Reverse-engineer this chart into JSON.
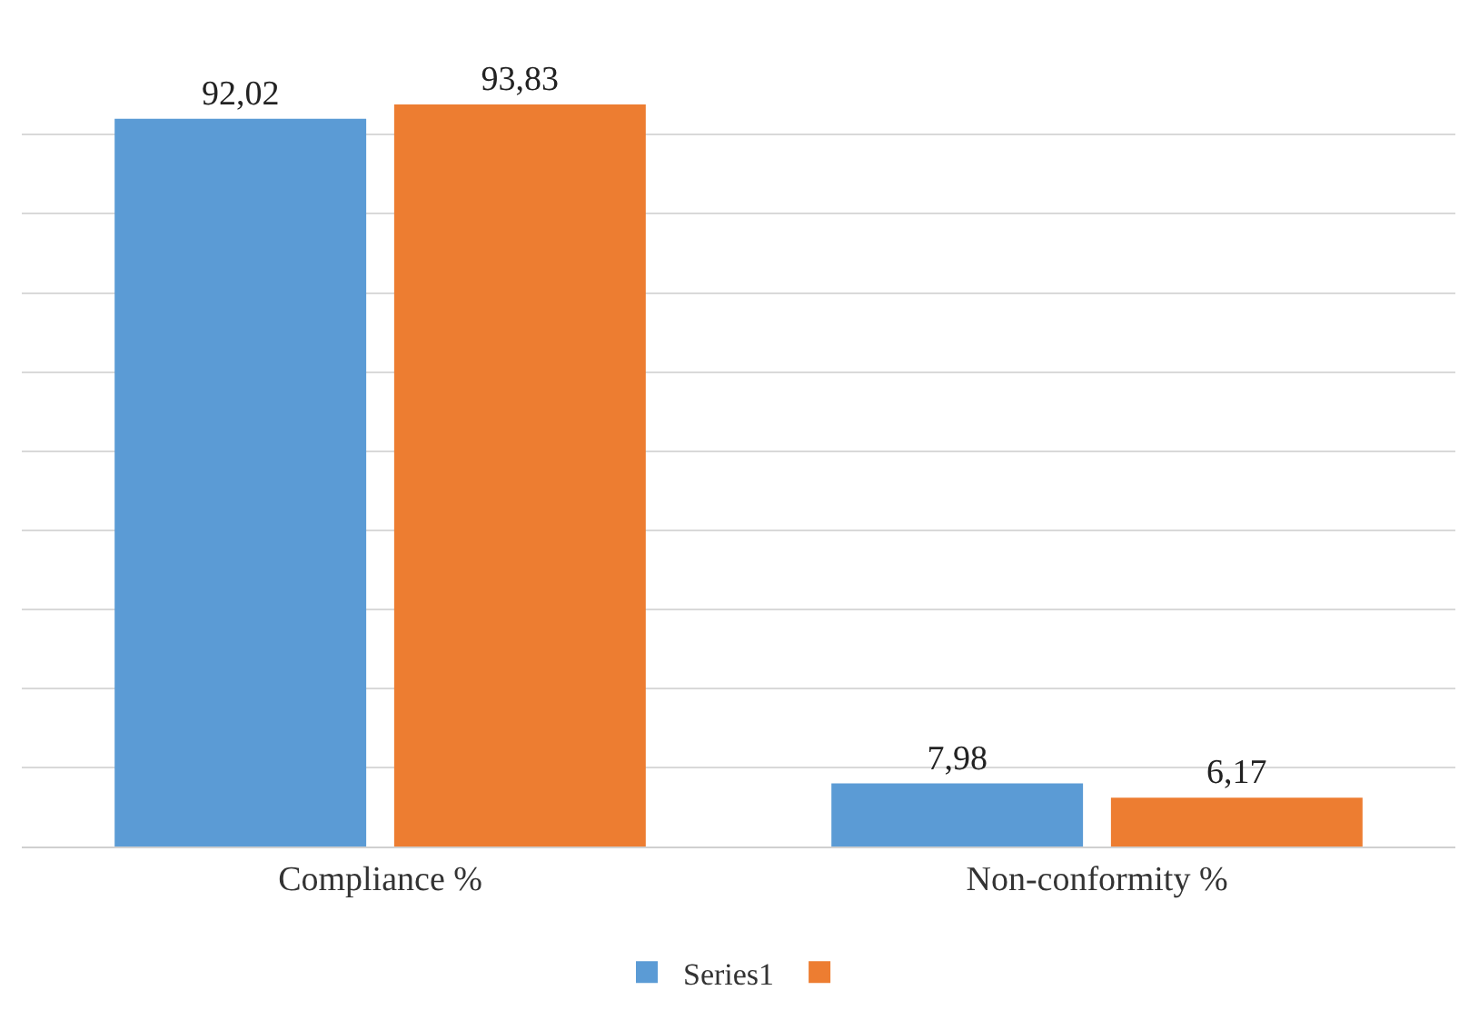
{
  "chart_data": {
    "type": "bar",
    "categories": [
      "Compliance %",
      "Non-conformity %"
    ],
    "series": [
      {
        "name": "Series1",
        "color": "#5b9bd5",
        "values": [
          92.02,
          7.98
        ],
        "value_labels": [
          "92,02",
          "7,98"
        ]
      },
      {
        "color": "#ed7d31",
        "values": [
          93.83,
          6.17
        ],
        "value_labels": [
          "93,83",
          "6,17"
        ]
      }
    ],
    "tick_labels": "x",
    "grid": "y",
    "legend": "bottom"
  }
}
